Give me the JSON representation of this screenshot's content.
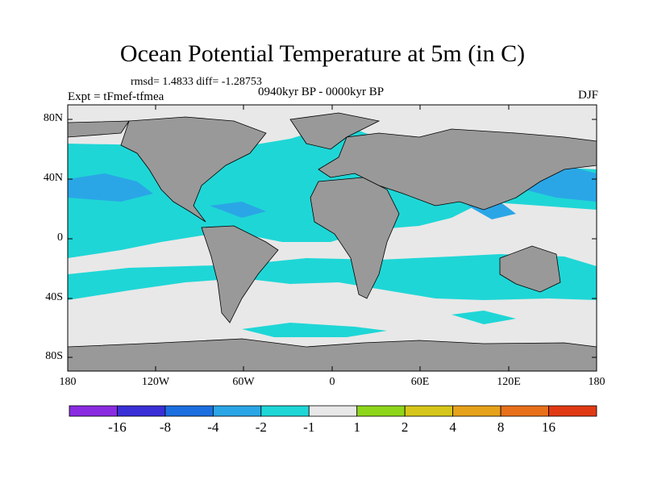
{
  "title": "Ocean Potential Temperature at 5m (in C)",
  "stats": "rmsd= 1.4833 diff= -1.28753",
  "experiment": "Expt = tFmef-tfmea",
  "period": "0940kyr BP - 0000kyr BP",
  "season": "DJF",
  "map": {
    "lat_ticks": [
      "80N",
      "40N",
      "0",
      "40S",
      "80S"
    ],
    "lon_ticks": [
      "180",
      "120W",
      "60W",
      "0",
      "60E",
      "120E",
      "180"
    ],
    "land_color": "#999999",
    "ocean_background_class": "-1 to 1",
    "dominant_anomaly_class": "-2 to -1"
  },
  "colorbar": {
    "labels": [
      "-16",
      "-8",
      "-4",
      "-2",
      "-1",
      "1",
      "2",
      "4",
      "8",
      "16"
    ],
    "colors": [
      "#8a2be2",
      "#3a2fd6",
      "#1c6fe0",
      "#2aa6e6",
      "#1fd6d6",
      "#e8e8e8",
      "#8ed61a",
      "#d6c61a",
      "#e6a21a",
      "#e8701a",
      "#e03a14"
    ]
  }
}
